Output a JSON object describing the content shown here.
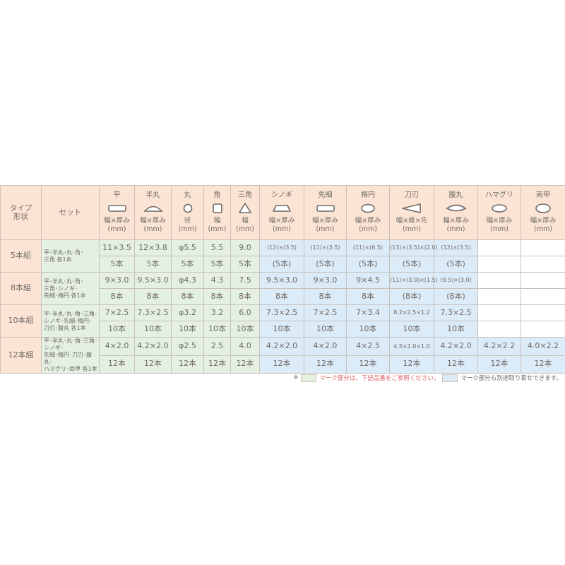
{
  "colors": {
    "header": "#fbe4d3",
    "standard_set": "#e4f0e2",
    "orderable": "#dcebf8",
    "border": "#c9c2bb",
    "note_red": "#e0606a"
  },
  "header": {
    "type_label": "タイプ\n形状",
    "set_label": "セット",
    "columns": [
      {
        "name": "平",
        "icon": "flat-rect-icon",
        "unit1": "幅×厚み",
        "unit2": "(mm)"
      },
      {
        "name": "半丸",
        "icon": "half-round-icon",
        "unit1": "幅×厚み",
        "unit2": "(mm)"
      },
      {
        "name": "丸",
        "icon": "round-icon",
        "unit1": "径",
        "unit2": "(mm)"
      },
      {
        "name": "角",
        "icon": "square-icon",
        "unit1": "幅",
        "unit2": "(mm)"
      },
      {
        "name": "三角",
        "icon": "triangle-icon",
        "unit1": "幅",
        "unit2": "(mm)"
      },
      {
        "name": "シノギ",
        "icon": "trapezoid-icon",
        "unit1": "幅×厚み",
        "unit2": "(mm)"
      },
      {
        "name": "先細",
        "icon": "tapered-rect-icon",
        "unit1": "幅×厚み",
        "unit2": "(mm)"
      },
      {
        "name": "楕円",
        "icon": "ellipse-icon",
        "unit1": "幅×厚み",
        "unit2": "(mm)"
      },
      {
        "name": "刀刃",
        "icon": "knife-edge-icon",
        "unit1": "幅×峰×先",
        "unit2": "(mm)"
      },
      {
        "name": "腹丸",
        "icon": "lens-icon",
        "unit1": "幅×厚み",
        "unit2": "(mm)"
      },
      {
        "name": "ハマグリ",
        "icon": "clam-icon",
        "unit1": "幅×厚み",
        "unit2": "(mm)"
      },
      {
        "name": "両甲",
        "icon": "double-convex-icon",
        "unit1": "幅×厚み",
        "unit2": "(mm)"
      }
    ]
  },
  "rows": [
    {
      "type": "5本組",
      "set": "平･半丸･丸･角･\n三角 各1本",
      "sizes": [
        "11×3.5",
        "12×3.8",
        "φ5.5",
        "5.5",
        "9.0",
        "(12)×(3.5)",
        "(11)×(3.5)",
        "(11)×(6.5)",
        "(13)×(3.5)×(2.0)",
        "(12)×(3.5)",
        "",
        ""
      ],
      "counts": [
        "5本",
        "5本",
        "5本",
        "5本",
        "5本",
        "(5本)",
        "(5本)",
        "(5本)",
        "(5本)",
        "(5本)",
        "",
        ""
      ]
    },
    {
      "type": "8本組",
      "set": "平･半丸･丸･角･\n三角･シノギ･\n先細･楕円 各1本",
      "sizes": [
        "9×3.0",
        "9.5×3.0",
        "φ4.3",
        "4.3",
        "7.5",
        "9.5×3.0",
        "9×3.0",
        "9×4.5",
        "(11)×(3.0)×(1.5)",
        "(9.5)×(3.0)",
        "",
        ""
      ],
      "counts": [
        "8本",
        "8本",
        "8本",
        "8本",
        "8本",
        "8本",
        "8本",
        "8本",
        "(8本)",
        "(8本)",
        "",
        ""
      ]
    },
    {
      "type": "10本組",
      "set": "平･半丸･丸･角･三角･\nシノギ･先細･楕円･\n刀刃･腹丸 各1本",
      "sizes": [
        "7×2.5",
        "7.3×2.5",
        "φ3.2",
        "3.2",
        "6.0",
        "7.3×2.5",
        "7×2.5",
        "7×3.4",
        "8.2×2.5×1.2",
        "7.3×2.5",
        "",
        ""
      ],
      "counts": [
        "10本",
        "10本",
        "10本",
        "10本",
        "10本",
        "10本",
        "10本",
        "10本",
        "10本",
        "10本",
        "",
        ""
      ]
    },
    {
      "type": "12本組",
      "set": "平･半丸･丸･角･三角･シノギ･\n先細･楕円･刀刃･腹丸･\nハマグリ･両甲 各1本",
      "sizes": [
        "4×2.0",
        "4.2×2.0",
        "φ2.5",
        "2.5",
        "4.0",
        "4.2×2.0",
        "4×2.0",
        "4×2.5",
        "4.5×2.0×1.0",
        "4.2×2.0",
        "4.2×2.2",
        "4.0×2.2"
      ],
      "counts": [
        "12本",
        "12本",
        "12本",
        "12本",
        "12本",
        "12本",
        "12本",
        "12本",
        "12本",
        "12本",
        "12本",
        "12本"
      ]
    }
  ],
  "note": {
    "mark": "※",
    "text_green": "マーク部分は、下記品番をご参照ください。",
    "text_blue": "マーク部分も別途取り寄せできます。"
  }
}
